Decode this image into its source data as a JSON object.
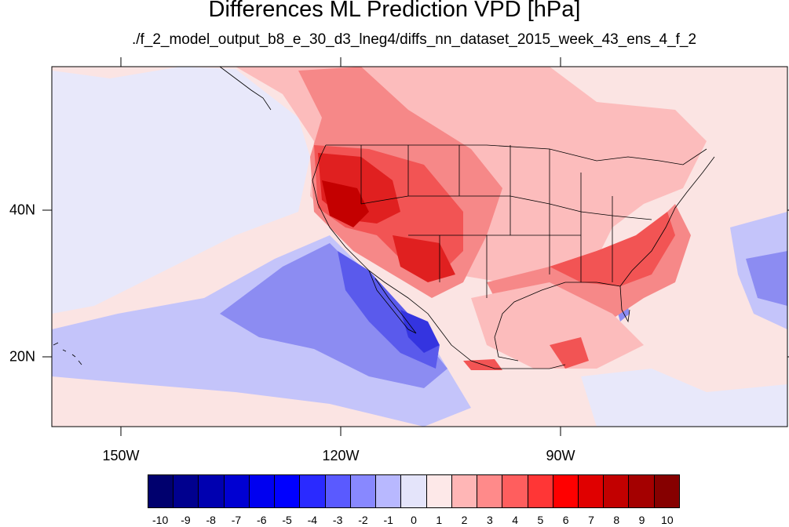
{
  "title": "Differences ML Prediction VPD [hPa]",
  "subtitle": "./f_2_model_output_b8_e_30_d3_lneg4/diffs_nn_dataset_2015_week_43_ens_4_f_2",
  "lon_labels": [
    "150W",
    "120W",
    "90W"
  ],
  "lat_labels": [
    "40N",
    "20N"
  ],
  "colorbar": {
    "labels": [
      "-10",
      "-9",
      "-8",
      "-7",
      "-6",
      "-5",
      "-4",
      "-3",
      "-2",
      "-1",
      "0",
      "1",
      "2",
      "3",
      "4",
      "5",
      "6",
      "7",
      "8",
      "9",
      "10"
    ],
    "colors": [
      "#00006e",
      "#00008e",
      "#0000b0",
      "#0000d2",
      "#0000f0",
      "#0000ff",
      "#2a2aff",
      "#5a5aff",
      "#8888ff",
      "#b8b8ff",
      "#e4e4fa",
      "#fde8e8",
      "#ffb6b6",
      "#ff8a8a",
      "#ff5e5e",
      "#ff3636",
      "#ff0000",
      "#e00000",
      "#c20000",
      "#a40000",
      "#860000"
    ]
  },
  "map": {
    "background_color": "#fbe4e3",
    "ocean_anomaly_color": "#e8e8fa",
    "region_colors": {
      "weak_blue": "#c4c4fa",
      "mid_blue": "#8c8cf2",
      "strong_blue": "#5a5aec",
      "deep_blue": "#3434e0",
      "light_red": "#fcbcbc",
      "mid_red": "#f68888",
      "strong_red": "#f25454",
      "deep_red": "#e02020",
      "darkest_red": "#c40000"
    },
    "boundary_color": "#000000"
  }
}
